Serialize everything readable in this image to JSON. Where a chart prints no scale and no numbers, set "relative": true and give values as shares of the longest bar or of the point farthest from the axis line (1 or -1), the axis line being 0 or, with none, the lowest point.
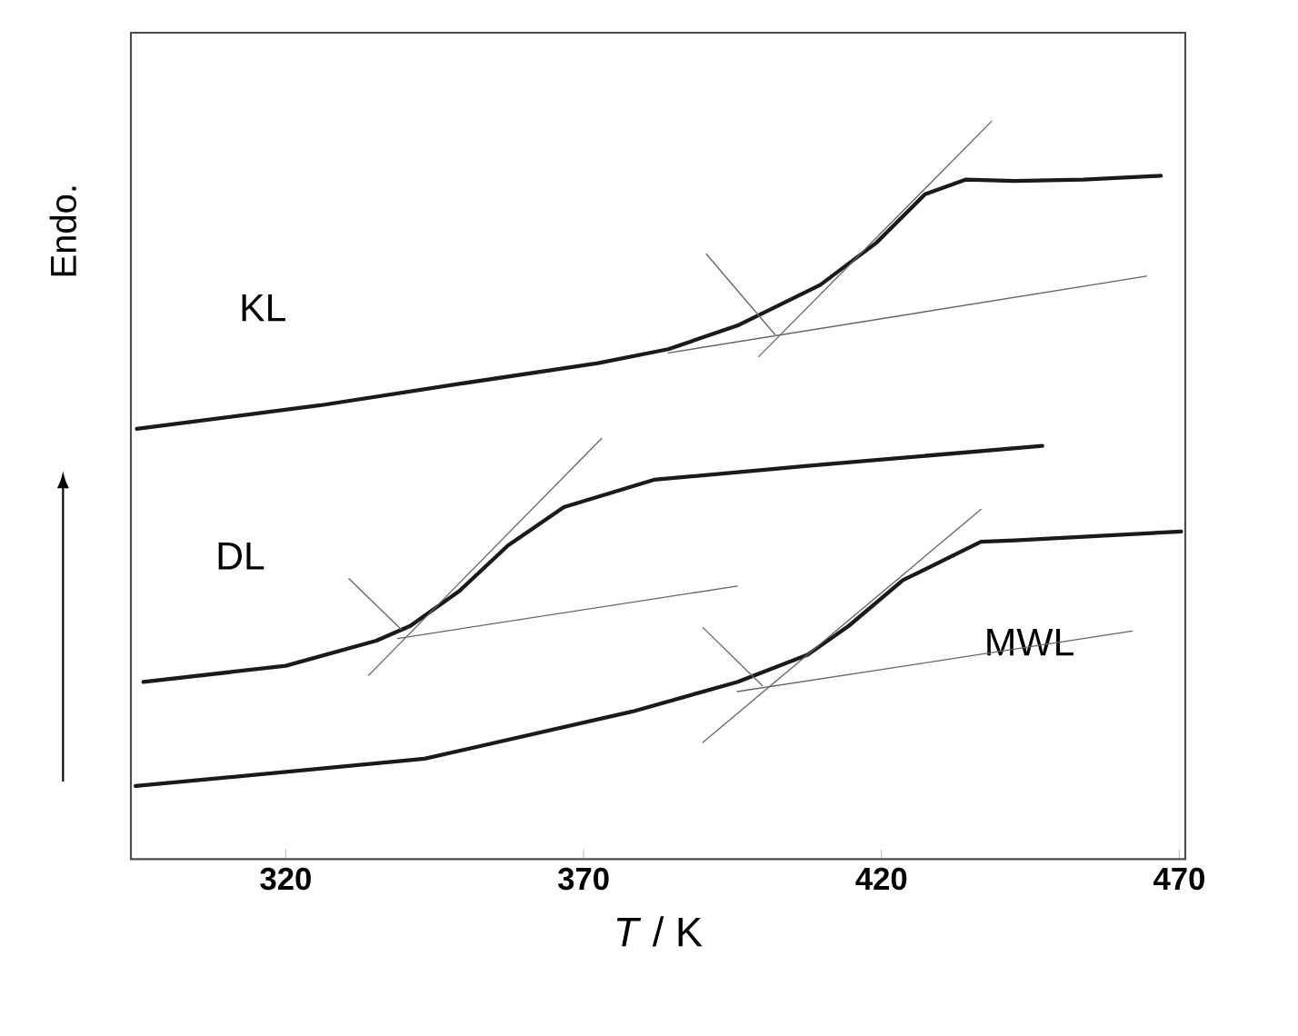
{
  "chart_data": {
    "type": "line",
    "xlabel": "*T* / K",
    "ylabel": "Endo.",
    "xlim": [
      294,
      471
    ],
    "xticks": [
      320,
      370,
      420,
      470
    ],
    "relative": true,
    "tick_labels": "x",
    "marker": "none",
    "line_style": "solid",
    "legend": false,
    "grid": false,
    "series": [
      {
        "name": "KL",
        "color": "#1a1a1a",
        "x": [
          295.0,
          325.8,
          349.1,
          372.4,
          384.2,
          395.8,
          409.7,
          419.1,
          427.3,
          434.2,
          442.4,
          453.9,
          466.9
        ],
        "values": [
          0.583,
          0.615,
          0.644,
          0.672,
          0.691,
          0.723,
          0.778,
          0.835,
          0.901,
          0.921,
          0.919,
          0.921,
          0.926
        ]
      },
      {
        "name": "DL",
        "color": "#1a1a1a",
        "x": [
          296.1,
          320.0,
          335.2,
          340.9,
          349.1,
          357.3,
          366.7,
          381.8,
          407.6,
          447.0
        ],
        "values": [
          0.24,
          0.262,
          0.296,
          0.316,
          0.363,
          0.425,
          0.477,
          0.514,
          0.533,
          0.56
        ]
      },
      {
        "name": "MWL",
        "color": "#1a1a1a",
        "x": [
          294.8,
          343.3,
          378.2,
          395.8,
          407.6,
          414.5,
          423.6,
          436.7,
          442.4,
          470.3
        ],
        "values": [
          0.099,
          0.136,
          0.2,
          0.24,
          0.277,
          0.316,
          0.378,
          0.43,
          0.432,
          0.444
        ]
      },
      {
        "color": "#666666",
        "x": [
          384.2,
          464.5
        ],
        "values": [
          0.686,
          0.79
        ]
      },
      {
        "color": "#666666",
        "x": [
          399.4,
          438.5
        ],
        "values": [
          0.681,
          1.0
        ]
      },
      {
        "color": "#666666",
        "x": [
          390.6,
          402.1
        ],
        "values": [
          0.82,
          0.711
        ]
      },
      {
        "color": "#666666",
        "x": [
          338.8,
          395.8
        ],
        "values": [
          0.299,
          0.37
        ]
      },
      {
        "color": "#666666",
        "x": [
          333.9,
          373.0
        ],
        "values": [
          0.249,
          0.57
        ]
      },
      {
        "color": "#666666",
        "x": [
          330.6,
          339.4
        ],
        "values": [
          0.38,
          0.311
        ]
      },
      {
        "color": "#666666",
        "x": [
          395.8,
          462.1
        ],
        "values": [
          0.227,
          0.309
        ]
      },
      {
        "color": "#666666",
        "x": [
          390.0,
          436.7
        ],
        "values": [
          0.158,
          0.474
        ]
      },
      {
        "color": "#666666",
        "x": [
          390.0,
          400.0
        ],
        "values": [
          0.314,
          0.235
        ]
      }
    ]
  }
}
